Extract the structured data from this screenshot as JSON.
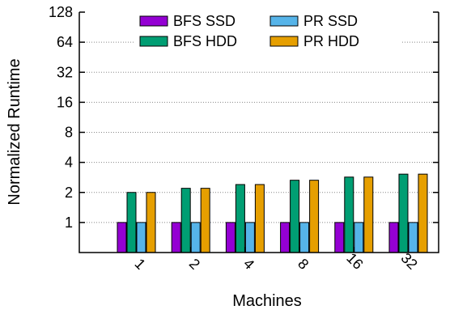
{
  "chart_data": {
    "type": "bar",
    "xlabel": "Machines",
    "ylabel": "Normalized Runtime",
    "categories": [
      "1",
      "2",
      "4",
      "8",
      "16",
      "32"
    ],
    "y_scale": "log2",
    "ylim": [
      0.5,
      128
    ],
    "yticks": [
      1,
      2,
      4,
      8,
      16,
      32,
      64,
      128
    ],
    "grid": true,
    "legend_position": "top",
    "series": [
      {
        "name": "BFS SSD",
        "color": "#9400D3",
        "values": [
          1,
          1,
          1,
          1,
          1,
          1
        ]
      },
      {
        "name": "BFS HDD",
        "color": "#009E73",
        "values": [
          2.0,
          2.2,
          2.4,
          2.65,
          2.85,
          3.05
        ]
      },
      {
        "name": "PR SSD",
        "color": "#56B4E9",
        "values": [
          1,
          1,
          1,
          1,
          1,
          1
        ]
      },
      {
        "name": "PR HDD",
        "color": "#E69F00",
        "values": [
          2.0,
          2.2,
          2.4,
          2.65,
          2.85,
          3.05
        ]
      }
    ]
  }
}
